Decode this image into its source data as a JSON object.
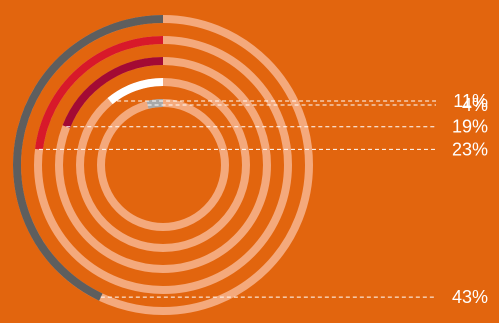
{
  "chart_data": {
    "type": "radial-bar",
    "title": "",
    "background_color": "#E2650E",
    "track_color": "#F4A97C",
    "leader_color": "#FFFFFF",
    "series": [
      {
        "label": "43%",
        "value": 43,
        "color": "#5E5E5E"
      },
      {
        "label": "23%",
        "value": 23,
        "color": "#D8192A"
      },
      {
        "label": "19%",
        "value": 19,
        "color": "#A30A34"
      },
      {
        "label": "11%",
        "value": 11,
        "color": "#FFFFFF"
      },
      {
        "label": "4%",
        "value": 4,
        "color": "#A9A9A9"
      }
    ]
  }
}
